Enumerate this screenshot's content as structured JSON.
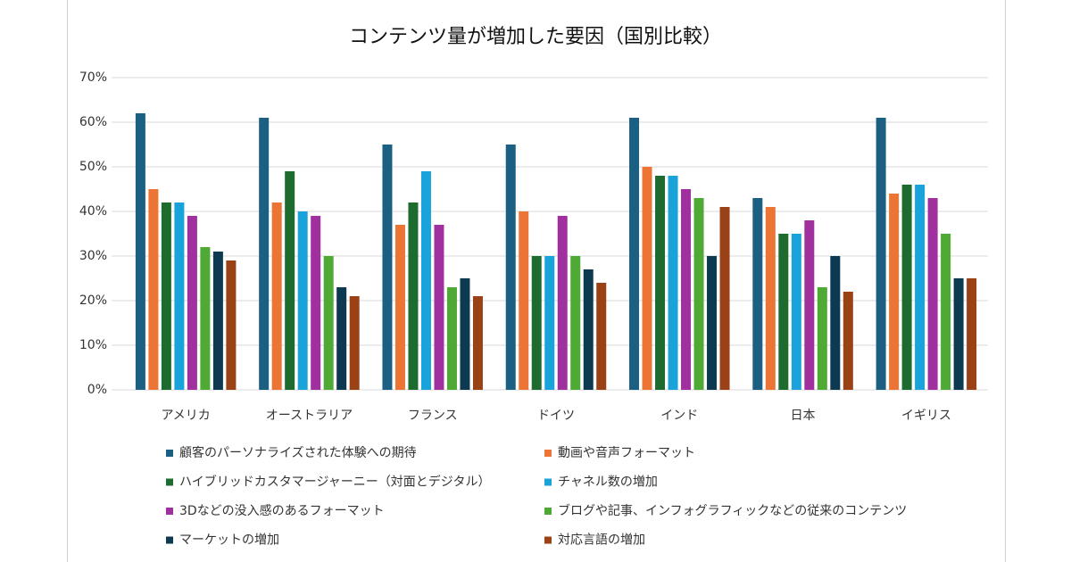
{
  "chart_data": {
    "type": "bar",
    "title": "コンテンツ量が増加した要因（国別比較）",
    "categories": [
      "アメリカ",
      "オーストラリア",
      "フランス",
      "ドイツ",
      "インド",
      "日本",
      "イギリス"
    ],
    "series": [
      {
        "name": "顧客のパーソナライズされた体験への期待",
        "color": "#1b5f82",
        "values": [
          62,
          61,
          55,
          55,
          61,
          43,
          61
        ]
      },
      {
        "name": "動画や音声フォーマット",
        "color": "#ec7535",
        "values": [
          45,
          42,
          37,
          40,
          50,
          41,
          44
        ]
      },
      {
        "name": "ハイブリッドカスタマージャーニー（対面とデジタル）",
        "color": "#1d6b2f",
        "values": [
          42,
          49,
          42,
          30,
          48,
          35,
          46
        ]
      },
      {
        "name": "チャネル数の増加",
        "color": "#1aa3da",
        "values": [
          42,
          40,
          49,
          30,
          48,
          35,
          46
        ]
      },
      {
        "name": "3Dなどの没入感のあるフォーマット",
        "color": "#a1309f",
        "values": [
          39,
          39,
          37,
          39,
          45,
          38,
          43
        ]
      },
      {
        "name": "ブログや記事、インフォグラフィックなどの従来のコンテンツ",
        "color": "#4fa935",
        "values": [
          32,
          30,
          23,
          30,
          43,
          23,
          35
        ]
      },
      {
        "name": "マーケットの増加",
        "color": "#0d3a50",
        "values": [
          31,
          23,
          25,
          27,
          30,
          30,
          25
        ]
      },
      {
        "name": "対応言語の増加",
        "color": "#9a4115",
        "values": [
          29,
          21,
          21,
          24,
          41,
          22,
          25
        ]
      }
    ],
    "ylim": [
      0,
      70
    ],
    "yticks": [
      {
        "value": 0,
        "label": "0%"
      },
      {
        "value": 10,
        "label": "10%"
      },
      {
        "value": 20,
        "label": "20%"
      },
      {
        "value": 30,
        "label": "30%"
      },
      {
        "value": 40,
        "label": "40%"
      },
      {
        "value": 50,
        "label": "50%"
      },
      {
        "value": 60,
        "label": "60%"
      },
      {
        "value": 70,
        "label": "70%"
      }
    ],
    "grid": true
  }
}
